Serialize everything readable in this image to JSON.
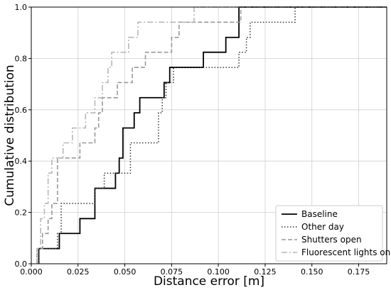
{
  "chart_data": {
    "type": "line",
    "step": true,
    "xlabel": "Distance error [m]",
    "ylabel": "Cumulative distribution",
    "xlim": [
      0.0,
      0.19
    ],
    "ylim": [
      0.0,
      1.0
    ],
    "xticks": [
      0.0,
      0.025,
      0.05,
      0.075,
      0.1,
      0.125,
      0.15,
      0.175
    ],
    "xtick_labels": [
      "0.000",
      "0.025",
      "0.050",
      "0.075",
      "0.100",
      "0.125",
      "0.150",
      "0.175"
    ],
    "yticks": [
      0.0,
      0.2,
      0.4,
      0.6,
      0.8,
      1.0
    ],
    "ytick_labels": [
      "0.0",
      "0.2",
      "0.4",
      "0.6",
      "0.8",
      "1.0"
    ],
    "grid": true,
    "legend_position": "bottom-right",
    "series": [
      {
        "name": "Baseline",
        "color": "#000000",
        "dash": "solid",
        "x": [
          0.004,
          0.015,
          0.026,
          0.034,
          0.045,
          0.047,
          0.049,
          0.055,
          0.058,
          0.071,
          0.074,
          0.092,
          0.104,
          0.111
        ],
        "y": [
          0.059,
          0.118,
          0.176,
          0.294,
          0.353,
          0.412,
          0.529,
          0.588,
          0.647,
          0.706,
          0.765,
          0.824,
          0.882,
          1.0
        ]
      },
      {
        "name": "Other day",
        "color": "#333333",
        "dash": "dotted",
        "x": [
          0.004,
          0.014,
          0.016,
          0.034,
          0.039,
          0.053,
          0.068,
          0.07,
          0.072,
          0.076,
          0.111,
          0.115,
          0.117,
          0.119,
          0.141
        ],
        "y": [
          0.059,
          0.118,
          0.235,
          0.294,
          0.353,
          0.471,
          0.588,
          0.647,
          0.706,
          0.765,
          0.824,
          0.882,
          0.941,
          0.941,
          1.0
        ]
      },
      {
        "name": "Shutters open",
        "color": "#999999",
        "dash": "dashed",
        "x": [
          0.003,
          0.006,
          0.009,
          0.011,
          0.014,
          0.026,
          0.034,
          0.036,
          0.038,
          0.046,
          0.054,
          0.061,
          0.075,
          0.079,
          0.084,
          0.112
        ],
        "y": [
          0.059,
          0.118,
          0.176,
          0.235,
          0.412,
          0.471,
          0.529,
          0.588,
          0.647,
          0.706,
          0.765,
          0.824,
          0.882,
          0.941,
          0.941,
          1.0
        ]
      },
      {
        "name": "Fluorescent lights on",
        "color": "#b8b8b8",
        "dash": "dashdot",
        "x": [
          0.003,
          0.005,
          0.007,
          0.009,
          0.011,
          0.017,
          0.022,
          0.029,
          0.034,
          0.038,
          0.041,
          0.043,
          0.052,
          0.057,
          0.062,
          0.087
        ],
        "y": [
          0.059,
          0.176,
          0.235,
          0.353,
          0.412,
          0.471,
          0.529,
          0.588,
          0.647,
          0.706,
          0.765,
          0.824,
          0.882,
          0.941,
          0.941,
          1.0
        ]
      }
    ]
  }
}
